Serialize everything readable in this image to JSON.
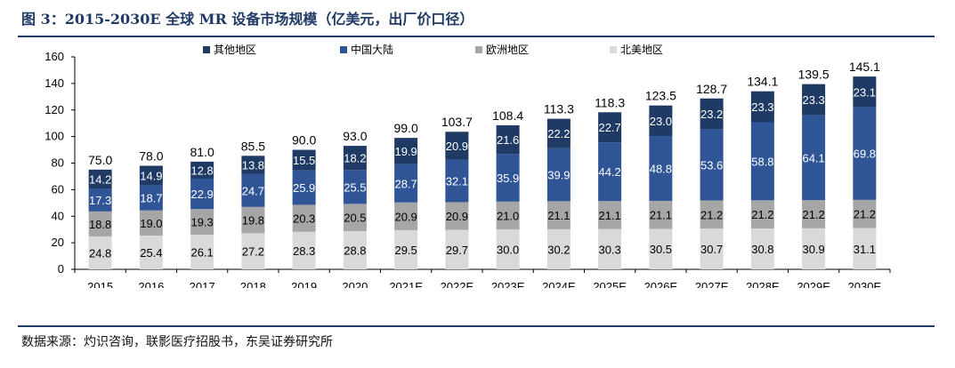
{
  "title": "图 3：2015-2030E 全球 MR 设备市场规模（亿美元，出厂价口径）",
  "source": "数据来源：灼识咨询，联影医疗招股书，东吴证券研究所",
  "chart_data": {
    "type": "bar",
    "stacked": true,
    "categories": [
      "2015",
      "2016",
      "2017",
      "2018",
      "2019",
      "2020",
      "2021E",
      "2022E",
      "2023E",
      "2024E",
      "2025E",
      "2026E",
      "2027E",
      "2028E",
      "2029E",
      "2030E"
    ],
    "series": [
      {
        "name": "北美地区",
        "color": "#d9d9d9",
        "values": [
          24.8,
          25.4,
          26.1,
          27.2,
          28.3,
          28.8,
          29.5,
          29.7,
          30.0,
          30.2,
          30.3,
          30.5,
          30.7,
          30.8,
          30.9,
          31.1
        ]
      },
      {
        "name": "欧洲地区",
        "color": "#a6a6a6",
        "values": [
          18.8,
          19.0,
          19.3,
          19.8,
          20.3,
          20.5,
          20.9,
          20.9,
          21.0,
          21.1,
          21.1,
          21.1,
          21.2,
          21.2,
          21.2,
          21.2
        ]
      },
      {
        "name": "中国大陆",
        "color": "#2f5597",
        "values": [
          17.3,
          18.7,
          22.9,
          24.7,
          25.9,
          25.5,
          28.7,
          32.1,
          35.9,
          39.9,
          44.2,
          48.8,
          53.6,
          58.8,
          64.1,
          69.8
        ]
      },
      {
        "name": "其他地区",
        "color": "#1f3a64",
        "values": [
          14.2,
          14.9,
          12.8,
          13.8,
          15.5,
          18.2,
          19.9,
          20.9,
          21.6,
          22.2,
          22.7,
          23.0,
          23.2,
          23.3,
          23.3,
          23.1
        ]
      }
    ],
    "totals": [
      "75.0",
      "78.0",
      "81.0",
      "85.5",
      "90.0",
      "93.0",
      "99.0",
      "103.7",
      "108.4",
      "113.3",
      "118.3",
      "123.5",
      "128.7",
      "134.1",
      "139.5",
      "145.1"
    ],
    "legend_order": [
      "其他地区",
      "中国大陆",
      "欧洲地区",
      "北美地区"
    ],
    "legend_position": "top",
    "ylim": [
      0,
      160
    ],
    "yticks": [
      0,
      20,
      40,
      60,
      80,
      100,
      120,
      140,
      160
    ],
    "grid": false,
    "xlabel": "",
    "ylabel": ""
  }
}
